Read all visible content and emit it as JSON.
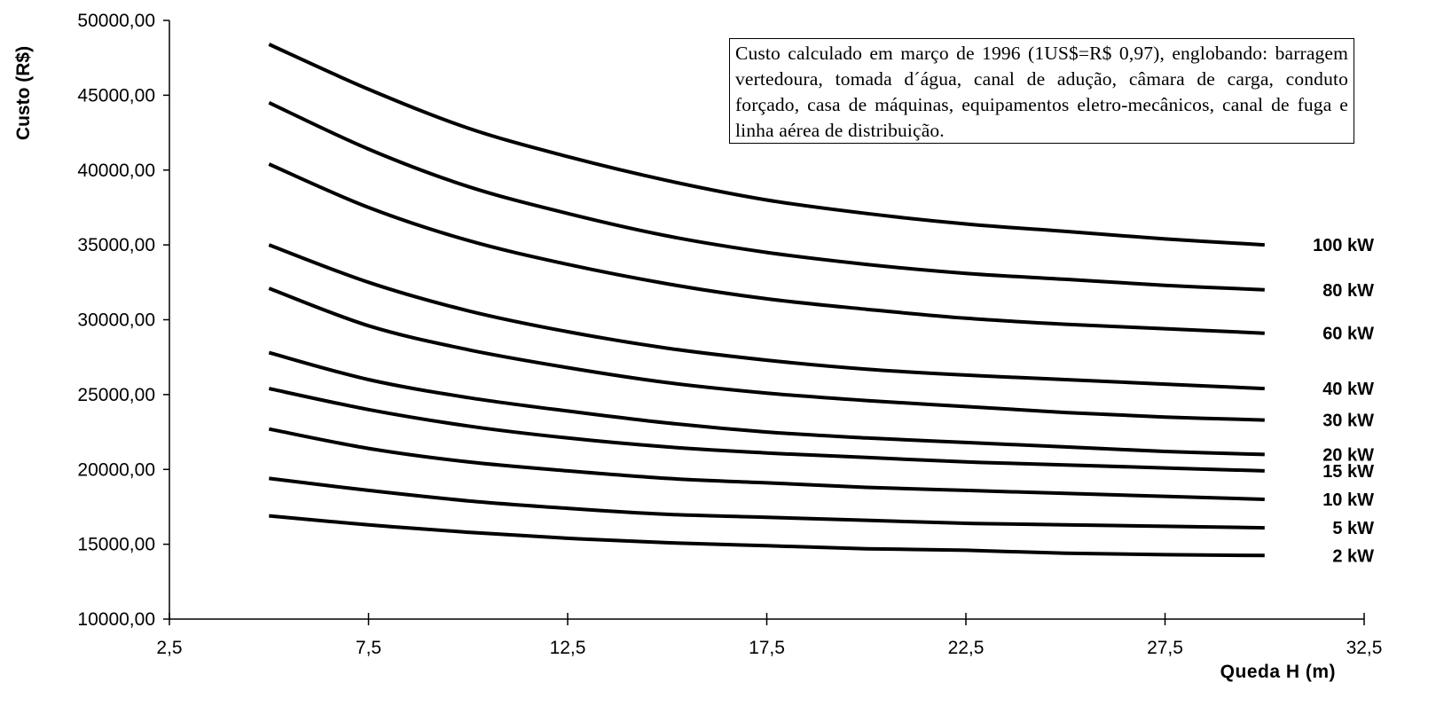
{
  "chart_data": {
    "type": "line",
    "xlabel": "Queda  H (m)",
    "ylabel": "Custo (R$)",
    "xlim": [
      2.5,
      32.5
    ],
    "ylim": [
      10000,
      50000
    ],
    "xticks": [
      2.5,
      7.5,
      12.5,
      17.5,
      22.5,
      27.5,
      32.5
    ],
    "xtick_labels": [
      "2,5",
      "7,5",
      "12,5",
      "17,5",
      "22,5",
      "27,5",
      "32,5"
    ],
    "yticks": [
      10000,
      15000,
      20000,
      25000,
      30000,
      35000,
      40000,
      45000,
      50000
    ],
    "ytick_labels": [
      "10000,00",
      "15000,00",
      "20000,00",
      "25000,00",
      "30000,00",
      "35000,00",
      "40000,00",
      "45000,00",
      "50000,00"
    ],
    "grid": false,
    "legend": "series labels at right end of lines",
    "line_color": "#000000",
    "annotation": "Custo calculado em março de 1996 (1US$=R$ 0,97), englobando: barragem vertedoura, tomada d´água, canal de adução, câmara de carga,  conduto forçado, casa de máquinas,  equipamentos eletro-mecânicos, canal de fuga e linha aérea de distribuição.",
    "x": [
      5,
      7.5,
      10,
      12.5,
      15,
      17.5,
      20,
      22.5,
      25,
      27.5,
      30
    ],
    "series": [
      {
        "name": "100 kW",
        "values": [
          48400,
          45400,
          42800,
          40900,
          39300,
          38000,
          37100,
          36400,
          35900,
          35400,
          35000
        ]
      },
      {
        "name": "80 kW",
        "values": [
          44500,
          41400,
          38900,
          37100,
          35600,
          34500,
          33700,
          33100,
          32700,
          32300,
          32000
        ]
      },
      {
        "name": "60 kW",
        "values": [
          40400,
          37500,
          35300,
          33700,
          32400,
          31400,
          30700,
          30100,
          29700,
          29400,
          29100
        ]
      },
      {
        "name": "40 kW",
        "values": [
          35000,
          32500,
          30600,
          29200,
          28100,
          27300,
          26700,
          26300,
          26000,
          25700,
          25400
        ]
      },
      {
        "name": "30 kW",
        "values": [
          32100,
          29600,
          28000,
          26800,
          25800,
          25100,
          24600,
          24200,
          23800,
          23500,
          23300
        ]
      },
      {
        "name": "20 kW",
        "values": [
          27800,
          26000,
          24800,
          23900,
          23100,
          22500,
          22100,
          21800,
          21500,
          21200,
          21000
        ]
      },
      {
        "name": "15 kW",
        "values": [
          25400,
          24000,
          22900,
          22100,
          21500,
          21100,
          20800,
          20500,
          20300,
          20100,
          19900
        ]
      },
      {
        "name": "10 kW",
        "values": [
          22700,
          21400,
          20500,
          19900,
          19400,
          19100,
          18800,
          18600,
          18400,
          18200,
          18000
        ]
      },
      {
        "name": "5 kW",
        "values": [
          19400,
          18600,
          17900,
          17400,
          17000,
          16800,
          16600,
          16400,
          16300,
          16200,
          16100
        ]
      },
      {
        "name": "2 kW",
        "values": [
          16900,
          16300,
          15800,
          15400,
          15100,
          14900,
          14700,
          14600,
          14400,
          14300,
          14250
        ]
      }
    ]
  }
}
